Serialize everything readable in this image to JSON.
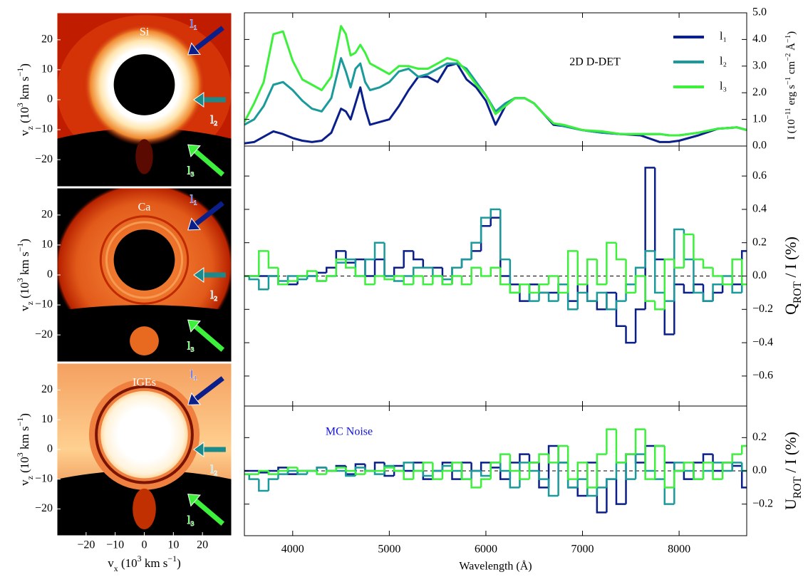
{
  "chart_data": [
    {
      "type": "image",
      "label": "Si",
      "annotations": [
        "l₁",
        "l₂",
        "l₃"
      ],
      "xlim": [
        -30,
        30
      ],
      "ylim": [
        -29,
        29
      ],
      "yticks": [
        {
          "value": -20,
          "label": "−20"
        },
        {
          "value": -10,
          "label": "−10"
        },
        0,
        10,
        20
      ],
      "ylabel": [
        "v",
        "z",
        " (10",
        "3",
        " km s",
        "−1",
        ")"
      ]
    },
    {
      "type": "image",
      "label": "Ca",
      "annotations": [
        "l₁",
        "l₂",
        "l₃"
      ],
      "xlim": [
        -30,
        30
      ],
      "ylim": [
        -29,
        29
      ],
      "yticks": [
        {
          "value": -20,
          "label": "−20"
        },
        {
          "value": -10,
          "label": "−10"
        },
        0,
        10,
        20
      ],
      "ylabel": [
        "v",
        "z",
        " (10",
        "3",
        " km s",
        "−1",
        ")"
      ]
    },
    {
      "type": "image",
      "label": "IGEs",
      "annotations": [
        "l₁",
        "l₂",
        "l₃"
      ],
      "xlim": [
        -30,
        30
      ],
      "ylim": [
        -29,
        29
      ],
      "yticks": [
        {
          "value": -20,
          "label": "−20"
        },
        {
          "value": -10,
          "label": "−10"
        },
        0,
        10,
        20
      ],
      "xticks": [
        {
          "value": -20,
          "label": "−20"
        },
        {
          "value": -10,
          "label": "−10"
        },
        0,
        10,
        20
      ],
      "ylabel": [
        "v",
        "z",
        " (10",
        "3",
        " km s",
        "−1",
        ")"
      ],
      "xlabel": [
        "v",
        "x",
        " (10",
        "3",
        " km s",
        "−1",
        ")"
      ]
    },
    {
      "type": "line",
      "annotation": "2D D-DET",
      "x": [
        3500,
        3600,
        3700,
        3800,
        3900,
        4000,
        4100,
        4200,
        4300,
        4400,
        4500,
        4550,
        4600,
        4650,
        4700,
        4750,
        4800,
        4900,
        5000,
        5100,
        5200,
        5300,
        5400,
        5500,
        5600,
        5700,
        5800,
        5900,
        6000,
        6100,
        6200,
        6300,
        6400,
        6500,
        6600,
        6700,
        6800,
        7000,
        7200,
        7400,
        7600,
        7800,
        7900,
        8000,
        8200,
        8400,
        8600,
        8700
      ],
      "series": [
        {
          "name": "l₁",
          "color": "#0b1f8a",
          "values": [
            0.1,
            0.15,
            0.35,
            0.55,
            0.45,
            0.3,
            0.2,
            0.15,
            0.2,
            0.5,
            1.4,
            1.3,
            1.0,
            1.6,
            2.2,
            1.4,
            0.8,
            0.9,
            1.0,
            1.5,
            2.1,
            2.6,
            2.6,
            2.4,
            3.0,
            3.1,
            2.5,
            2.2,
            1.7,
            0.8,
            1.5,
            1.8,
            1.8,
            1.6,
            1.2,
            0.8,
            0.75,
            0.6,
            0.5,
            0.45,
            0.4,
            0.15,
            0.15,
            0.2,
            0.4,
            0.65,
            0.7,
            0.6
          ]
        },
        {
          "name": "l₂",
          "color": "#1a9a9a",
          "values": [
            0.8,
            1.0,
            1.5,
            2.3,
            2.4,
            2.1,
            1.7,
            1.4,
            1.3,
            1.8,
            3.3,
            2.8,
            2.2,
            2.9,
            3.1,
            2.4,
            2.1,
            2.2,
            2.4,
            2.8,
            2.9,
            2.6,
            2.7,
            2.9,
            3.1,
            3.1,
            2.9,
            2.4,
            1.9,
            1.3,
            1.6,
            1.8,
            1.8,
            1.6,
            1.2,
            0.85,
            0.75,
            0.6,
            0.5,
            0.45,
            0.45,
            0.45,
            0.4,
            0.4,
            0.5,
            0.65,
            0.7,
            0.6
          ]
        },
        {
          "name": "l₃",
          "color": "#3cf03c",
          "values": [
            0.9,
            1.6,
            2.4,
            4.2,
            4.3,
            3.2,
            2.5,
            2.3,
            2.1,
            2.6,
            4.5,
            4.2,
            3.4,
            3.5,
            3.8,
            3.5,
            3.1,
            2.9,
            2.7,
            3.0,
            3.0,
            2.9,
            2.9,
            3.1,
            3.3,
            3.2,
            2.8,
            2.3,
            1.9,
            1.2,
            1.5,
            1.8,
            1.8,
            1.6,
            1.2,
            0.85,
            0.8,
            0.6,
            0.55,
            0.45,
            0.45,
            0.45,
            0.4,
            0.4,
            0.5,
            0.65,
            0.7,
            0.6
          ]
        }
      ],
      "xlim": [
        3500,
        8700
      ],
      "xticks": [
        4000,
        5000,
        6000,
        7000,
        8000
      ],
      "ylim": [
        0,
        5
      ],
      "yticks": [
        {
          "value": 0,
          "label": "0.0"
        },
        {
          "value": 1,
          "label": "1.0"
        },
        {
          "value": 2,
          "label": "2.0"
        },
        {
          "value": 3,
          "label": "3.0"
        },
        {
          "value": 4,
          "label": "4.0"
        },
        {
          "value": 5,
          "label": "5.0"
        }
      ],
      "ylabel": [
        "I (10",
        "−11",
        " erg s",
        "−1",
        " cm",
        "−2",
        " Å",
        "−1",
        ")"
      ],
      "legend": "upper right"
    },
    {
      "type": "step",
      "x": [
        3500,
        3600,
        3700,
        3800,
        3900,
        4000,
        4100,
        4200,
        4300,
        4400,
        4500,
        4600,
        4700,
        4800,
        4900,
        5000,
        5100,
        5200,
        5300,
        5400,
        5500,
        5600,
        5700,
        5800,
        5900,
        6000,
        6100,
        6200,
        6300,
        6400,
        6500,
        6600,
        6700,
        6800,
        6900,
        7000,
        7100,
        7200,
        7300,
        7400,
        7500,
        7600,
        7700,
        7800,
        7900,
        8000,
        8100,
        8200,
        8300,
        8400,
        8500,
        8600,
        8700
      ],
      "series": [
        {
          "color": "#0b1f8a",
          "values": [
            0,
            0,
            0,
            0,
            -0.05,
            -0.05,
            0,
            0,
            0.02,
            0.05,
            0.15,
            0.08,
            0.1,
            0,
            0.1,
            0,
            0.05,
            0.15,
            0.1,
            0.05,
            0.05,
            -0.05,
            0.05,
            0.1,
            0.15,
            0.3,
            0.35,
            0,
            -0.05,
            -0.15,
            -0.05,
            -0.1,
            -0.1,
            -0.05,
            -0.15,
            -0.05,
            -0.15,
            -0.2,
            -0.1,
            -0.3,
            -0.4,
            -0.2,
            0.65,
            0.1,
            -0.35,
            -0.05,
            -0.1,
            -0.05,
            -0.15,
            -0.1,
            -0.05,
            -0.05,
            0.15
          ]
        },
        {
          "color": "#1a9a9a",
          "values": [
            0,
            -0.02,
            -0.08,
            0,
            -0.03,
            0,
            -0.02,
            0,
            -0.03,
            0,
            0.08,
            0.1,
            0,
            0.1,
            0.2,
            0,
            -0.03,
            0,
            0.05,
            0.05,
            0,
            -0.02,
            0.05,
            0.1,
            0.2,
            0.35,
            0.4,
            0.1,
            -0.1,
            -0.05,
            -0.15,
            -0.1,
            -0.15,
            -0.05,
            -0.2,
            -0.1,
            -0.15,
            -0.1,
            -0.2,
            -0.15,
            -0.05,
            0.05,
            0.15,
            -0.1,
            -0.15,
            0.28,
            0.1,
            -0.1,
            -0.15,
            -0.05,
            0,
            -0.1,
            -0.05
          ]
        },
        {
          "color": "#3cf03c",
          "values": [
            0,
            0,
            0.15,
            0.05,
            -0.05,
            -0.03,
            0,
            0.03,
            -0.03,
            0,
            0.1,
            0.05,
            0,
            -0.05,
            0,
            -0.02,
            0,
            -0.05,
            0,
            -0.05,
            0,
            -0.05,
            0,
            -0.05,
            0.05,
            0,
            0.05,
            -0.05,
            -0.1,
            -0.05,
            -0.1,
            -0.05,
            0,
            -0.1,
            0.15,
            -0.05,
            0.1,
            -0.05,
            0.2,
            0.1,
            -0.1,
            0,
            -0.15,
            -0.2,
            0.1,
            0.05,
            0.25,
            0.1,
            0.05,
            0,
            -0.05,
            0.1,
            -0.05
          ]
        }
      ],
      "xlim": [
        3500,
        8700
      ],
      "xticks": [
        4000,
        5000,
        6000,
        7000,
        8000
      ],
      "ylim": [
        -0.78,
        0.78
      ],
      "yticks": [
        {
          "value": -0.6,
          "label": "−0.6"
        },
        {
          "value": -0.4,
          "label": "−0.4"
        },
        {
          "value": -0.2,
          "label": "−0.2"
        },
        {
          "value": 0,
          "label": "0.0"
        },
        0.2,
        0.4,
        0.6
      ],
      "ylabel": [
        "Q",
        "ROT",
        " / I (%)"
      ]
    },
    {
      "type": "step",
      "annotation": "MC Noise",
      "x": [
        3500,
        3600,
        3700,
        3800,
        3900,
        4000,
        4100,
        4200,
        4300,
        4400,
        4500,
        4600,
        4700,
        4800,
        4900,
        5000,
        5100,
        5200,
        5300,
        5400,
        5500,
        5600,
        5700,
        5800,
        5900,
        6000,
        6100,
        6200,
        6300,
        6400,
        6500,
        6600,
        6700,
        6800,
        6900,
        7000,
        7100,
        7200,
        7300,
        7400,
        7500,
        7600,
        7700,
        7800,
        7900,
        8000,
        8100,
        8200,
        8300,
        8400,
        8500,
        8600,
        8700
      ],
      "series": [
        {
          "color": "#0b1f8a",
          "values": [
            0,
            0,
            -0.01,
            0,
            0.02,
            -0.02,
            0,
            0,
            0.02,
            0,
            0.03,
            -0.02,
            0.04,
            0,
            0.05,
            -0.03,
            0.03,
            0,
            0.05,
            -0.05,
            0,
            0.05,
            -0.05,
            0.05,
            0,
            0.05,
            0.02,
            -0.05,
            0.05,
            0.1,
            0.05,
            -0.1,
            0.15,
            0.05,
            -0.1,
            -0.15,
            0.05,
            -0.25,
            -0.05,
            -0.2,
            0.1,
            0.05,
            0.15,
            0.15,
            0.05,
            0,
            -0.05,
            0.05,
            0.1,
            0,
            0.05,
            0.03,
            -0.1
          ]
        },
        {
          "color": "#1a9a9a",
          "values": [
            -0.02,
            -0.05,
            -0.12,
            -0.05,
            -0.02,
            0,
            -0.02,
            0,
            0.02,
            0,
            0,
            -0.03,
            0.02,
            0,
            -0.02,
            0.03,
            0,
            0.05,
            0,
            -0.03,
            0,
            0.03,
            0,
            -0.05,
            0,
            -0.03,
            0.05,
            0,
            -0.1,
            0.05,
            0,
            -0.05,
            -0.15,
            0.05,
            -0.1,
            -0.05,
            -0.15,
            -0.1,
            -0.05,
            0.05,
            -0.05,
            0.1,
            0,
            -0.05,
            -0.2,
            0.05,
            0,
            -0.05,
            0,
            0.05,
            0,
            0.05,
            0
          ]
        },
        {
          "color": "#3cf03c",
          "values": [
            -0.02,
            -0.02,
            0,
            -0.02,
            0,
            0.02,
            0,
            0,
            -0.02,
            0,
            0.02,
            0,
            -0.02,
            0,
            0,
            0.02,
            0,
            -0.05,
            0,
            0.05,
            -0.05,
            0,
            0.05,
            -0.05,
            -0.1,
            -0.05,
            0.05,
            0.1,
            0,
            -0.05,
            0.05,
            0.1,
            0.05,
            0.15,
            -0.05,
            0.05,
            -0.1,
            0.1,
            0.25,
            0.05,
            0.1,
            0.25,
            -0.05,
            0.15,
            -0.1,
            0,
            0.05,
            -0.05,
            0.05,
            -0.05,
            0.05,
            0.1,
            0.15
          ]
        }
      ],
      "xlim": [
        3500,
        8700
      ],
      "xticks": [
        4000,
        5000,
        6000,
        7000,
        8000
      ],
      "ylim": [
        -0.39,
        0.39
      ],
      "yticks": [
        {
          "value": -0.2,
          "label": "−0.2"
        },
        {
          "value": 0,
          "label": "0.0"
        },
        0.2
      ],
      "ylabel": [
        "U",
        "ROT",
        " / I (%)"
      ],
      "xlabel": "Wavelength (Å)"
    }
  ]
}
